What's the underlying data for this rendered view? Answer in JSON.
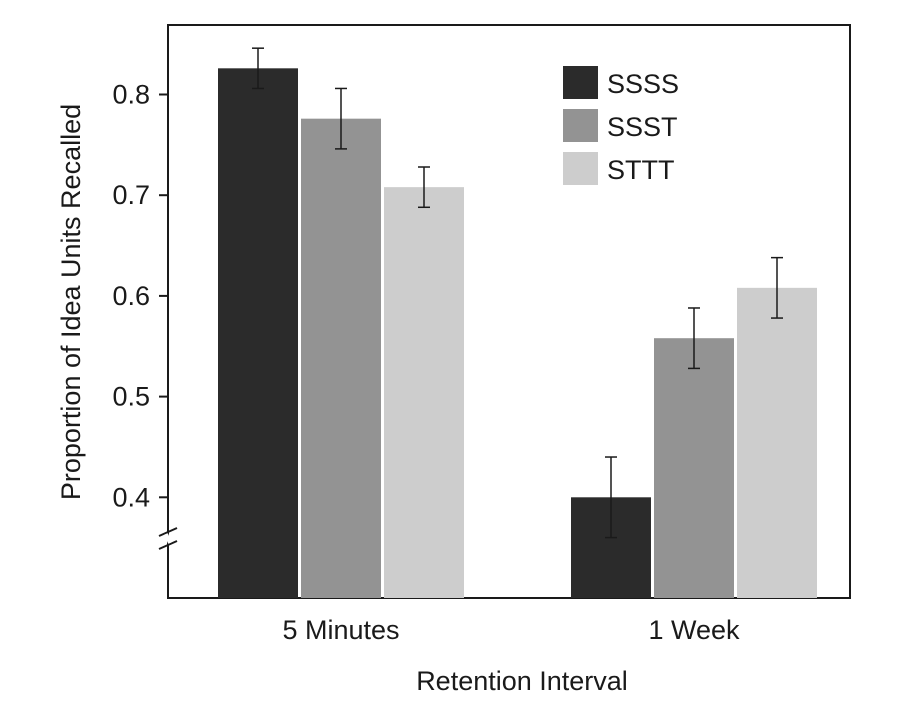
{
  "chart_data": {
    "type": "bar",
    "title": "",
    "xlabel": "Retention Interval",
    "ylabel": "Proportion of Idea Units Recalled",
    "categories": [
      "5 Minutes",
      "1 Week"
    ],
    "ylim": [
      0.3,
      0.85
    ],
    "axis_break": true,
    "y_ticks": [
      0.4,
      0.5,
      0.6,
      0.7,
      0.8
    ],
    "y_tick_labels": [
      "0.4",
      "0.5",
      "0.6",
      "0.7",
      "0.8"
    ],
    "grid": false,
    "legend_position": "top-right",
    "series": [
      {
        "name": "SSSS",
        "color": "#2b2b2b",
        "values": [
          0.826,
          0.4
        ],
        "error": [
          0.02,
          0.04
        ]
      },
      {
        "name": "SSST",
        "color": "#939393",
        "values": [
          0.776,
          0.558
        ],
        "error": [
          0.03,
          0.03
        ]
      },
      {
        "name": "STTT",
        "color": "#cdcdcd",
        "values": [
          0.708,
          0.608
        ],
        "error": [
          0.02,
          0.03
        ]
      }
    ]
  }
}
